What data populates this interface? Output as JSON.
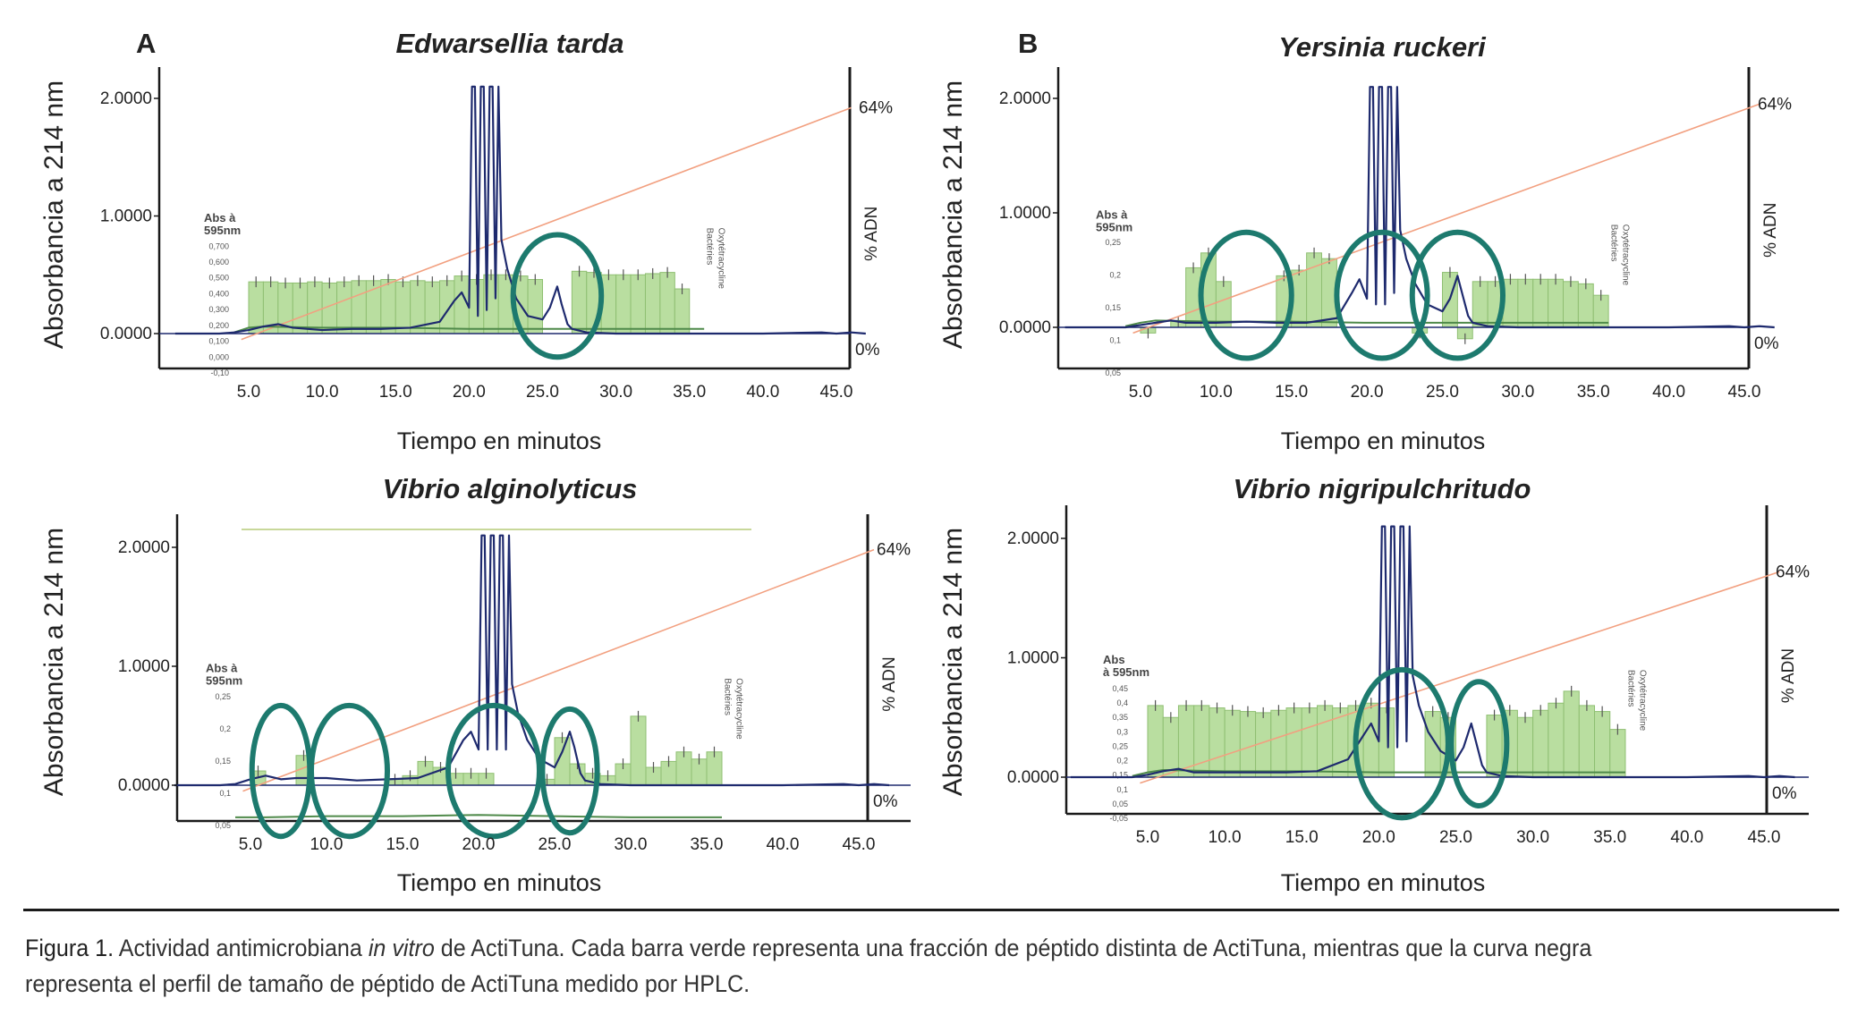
{
  "figure": {
    "caption_label": "Figura 1.",
    "caption_pre": " Actividad antimicrobiana ",
    "caption_em": "in vitro",
    "caption_post": " de ActiTuna. Cada barra verde representa una fracción de péptido distinta de ActiTuna, mientras que la curva negra representa el perfil de tamaño de péptido de ActiTuna medido por HPLC."
  },
  "colors": {
    "bar_fill": "#b9dea0",
    "bar_stroke": "#8fbf72",
    "hplc_line": "#1e2a6e",
    "gradient_line": "#f2a080",
    "green_trace": "#4f8a4a",
    "circle": "#1d7a6e",
    "axis": "#1a1a1a"
  },
  "chart_data": [
    {
      "type": "bar",
      "panel_letter": "A",
      "title": "Edwarsellia tarda",
      "xlabel": "Tiempo en minutos",
      "ylabel": "Absorbancia a 214 nm",
      "y2label": "% ADN",
      "xlim": [
        0,
        47
      ],
      "ylim": [
        -0.25,
        2.2
      ],
      "x_ticks": [
        "5.0",
        "10.0",
        "15.0",
        "20.0",
        "25.0",
        "30.0",
        "35.0",
        "40.0",
        "45.0"
      ],
      "y_ticks": [
        "2.0000",
        "1.0000",
        "0.0000"
      ],
      "y2_ticks": [
        "64%",
        "0%"
      ],
      "inset": {
        "label_line1": "Abs à",
        "label_line2": "595nm",
        "ticks": [
          "0,700",
          "0,600",
          "0,500",
          "0,400",
          "0,300",
          "0,200",
          "0,100",
          "0,000",
          "-0,10"
        ],
        "markers": [
          "Bactéries",
          "Oxytétracycline"
        ]
      },
      "bars": {
        "x": [
          5.5,
          6.5,
          7.5,
          8.5,
          9.5,
          10.5,
          11.5,
          12.5,
          13.5,
          14.5,
          15.5,
          16.5,
          17.5,
          18.5,
          19.5,
          20.5,
          21.5,
          22.5,
          23.5,
          24.5,
          25.5,
          26.5,
          27.5,
          28.5,
          29.5,
          30.5,
          31.5,
          32.5,
          33.5,
          34.5,
          35.5
        ],
        "values": [
          0.44,
          0.44,
          0.43,
          0.43,
          0.44,
          0.43,
          0.44,
          0.45,
          0.45,
          0.46,
          0.44,
          0.45,
          0.44,
          0.45,
          0.49,
          0.46,
          0.5,
          0.5,
          0.49,
          0.46,
          0.0,
          0.0,
          0.53,
          0.52,
          0.5,
          0.5,
          0.5,
          0.51,
          0.52,
          0.38,
          0.0
        ]
      },
      "hplc": {
        "x": [
          0,
          3,
          4,
          5,
          6,
          7,
          8,
          10,
          12,
          14,
          16,
          18,
          19,
          19.5,
          20,
          20.2,
          20.4,
          20.6,
          20.8,
          21.0,
          21.2,
          21.4,
          21.6,
          21.8,
          22.0,
          22.2,
          22.6,
          23.2,
          24,
          25,
          25.5,
          26,
          26.3,
          26.7,
          27,
          28,
          30,
          35,
          40,
          44,
          45,
          46,
          47
        ],
        "y": [
          0.0,
          0.0,
          0.01,
          0.03,
          0.06,
          0.08,
          0.05,
          0.03,
          0.04,
          0.04,
          0.05,
          0.1,
          0.28,
          0.35,
          0.22,
          2.1,
          2.1,
          0.15,
          2.1,
          2.1,
          0.2,
          2.1,
          2.1,
          0.3,
          2.1,
          0.8,
          0.55,
          0.3,
          0.15,
          0.12,
          0.22,
          0.4,
          0.25,
          0.08,
          0.04,
          0.01,
          0.0,
          0.0,
          0.0,
          0.01,
          0.0,
          0.01,
          0.0
        ]
      },
      "green_trace": {
        "x": [
          4,
          5,
          6,
          10,
          15,
          20,
          25,
          30,
          35,
          36
        ],
        "y": [
          0.01,
          0.05,
          0.06,
          0.05,
          0.05,
          0.04,
          0.04,
          0.04,
          0.04,
          0.04
        ]
      },
      "gradient": {
        "x0": 4.5,
        "y0": -0.05,
        "x1": 46,
        "y1": 1.92
      },
      "circles": [
        {
          "cx": 26.0,
          "cy": 0.32,
          "rx": 3.0,
          "ry": 0.52
        }
      ]
    },
    {
      "type": "bar",
      "panel_letter": "B",
      "title": "Yersinia ruckeri",
      "xlabel": "Tiempo en minutos",
      "ylabel": "Absorbancia a 214 nm",
      "y2label": "% ADN",
      "xlim": [
        0,
        47
      ],
      "ylim": [
        -0.35,
        2.2
      ],
      "x_ticks": [
        "5.0",
        "10.0",
        "15.0",
        "20.0",
        "25.0",
        "30.0",
        "35.0",
        "40.0",
        "45.0"
      ],
      "y_ticks": [
        "2.0000",
        "1.0000",
        "0.0000"
      ],
      "y2_ticks": [
        "64%",
        "0%"
      ],
      "inset": {
        "label_line1": "Abs à",
        "label_line2": "595nm",
        "ticks": [
          "0,25",
          "0,2",
          "0,15",
          "0,1",
          "0,05"
        ],
        "markers": [
          "Bactéries",
          "Oxytétracycline"
        ]
      },
      "bars": {
        "x": [
          5.5,
          6.5,
          7.5,
          8.5,
          9.5,
          10.5,
          11.5,
          12.5,
          13.5,
          14.5,
          15.5,
          16.5,
          17.5,
          18.5,
          19.5,
          20.5,
          21.5,
          22.5,
          23.5,
          24.5,
          25.5,
          26.5,
          27.5,
          28.5,
          29.5,
          30.5,
          31.5,
          32.5,
          33.5,
          34.5,
          35.5
        ],
        "values": [
          -0.05,
          0.0,
          0.05,
          0.52,
          0.65,
          0.4,
          0.0,
          0.0,
          0.0,
          0.45,
          0.5,
          0.65,
          0.6,
          0.0,
          0.0,
          0.0,
          0.0,
          0.0,
          -0.05,
          0.0,
          0.48,
          -0.1,
          0.4,
          0.4,
          0.42,
          0.42,
          0.42,
          0.42,
          0.4,
          0.38,
          0.28
        ]
      },
      "hplc": {
        "x": [
          0,
          3,
          4,
          5,
          6,
          7,
          8,
          10,
          12,
          14,
          16,
          18,
          19,
          19.5,
          20,
          20.2,
          20.4,
          20.6,
          20.8,
          21.0,
          21.2,
          21.4,
          21.6,
          21.8,
          22.0,
          22.2,
          22.6,
          23.2,
          24,
          25,
          25.5,
          26,
          26.3,
          26.7,
          27,
          28,
          30,
          35,
          40,
          44,
          45,
          46,
          47
        ],
        "y": [
          0.0,
          0.0,
          0.0,
          0.02,
          0.04,
          0.06,
          0.04,
          0.04,
          0.05,
          0.04,
          0.04,
          0.08,
          0.3,
          0.42,
          0.25,
          2.1,
          2.1,
          0.2,
          2.1,
          2.1,
          0.2,
          2.1,
          2.1,
          0.3,
          2.1,
          0.85,
          0.6,
          0.38,
          0.2,
          0.14,
          0.25,
          0.45,
          0.3,
          0.1,
          0.04,
          0.01,
          0.0,
          0.0,
          0.0,
          0.01,
          0.0,
          0.01,
          0.0
        ]
      },
      "green_trace": {
        "x": [
          4,
          5,
          6,
          10,
          15,
          20,
          25,
          30,
          35,
          36
        ],
        "y": [
          0.01,
          0.04,
          0.06,
          0.05,
          0.05,
          0.04,
          0.04,
          0.04,
          0.04,
          0.04
        ]
      },
      "gradient": {
        "x0": 4.5,
        "y0": -0.05,
        "x1": 46,
        "y1": 1.95
      },
      "circles": [
        {
          "cx": 12.0,
          "cy": 0.28,
          "rx": 3.0,
          "ry": 0.55
        },
        {
          "cx": 21.0,
          "cy": 0.28,
          "rx": 3.0,
          "ry": 0.55
        },
        {
          "cx": 26.0,
          "cy": 0.28,
          "rx": 3.0,
          "ry": 0.55
        }
      ]
    },
    {
      "type": "bar",
      "panel_letter": "",
      "title": "Vibrio alginolyticus",
      "xlabel": "Tiempo en minutos",
      "ylabel": "Absorbancia a 214 nm",
      "y2label": "% ADN",
      "xlim": [
        0,
        47
      ],
      "ylim": [
        -0.3,
        2.3
      ],
      "x_ticks": [
        "5.0",
        "10.0",
        "15.0",
        "20.0",
        "25.0",
        "30.0",
        "35.0",
        "40.0",
        "45.0"
      ],
      "y_ticks": [
        "2.0000",
        "1.0000",
        "0.0000"
      ],
      "y2_ticks": [
        "64%",
        "0%"
      ],
      "inset": {
        "label_line1": "Abs à",
        "label_line2": "595nm",
        "ticks": [
          "0,25",
          "0,2",
          "0,15",
          "0,1",
          "0,05"
        ],
        "markers": [
          "Bactéries",
          "Oxytétracycline"
        ]
      },
      "bars": {
        "x": [
          5.5,
          6.5,
          7.5,
          8.5,
          9.5,
          10.5,
          11.5,
          12.5,
          13.5,
          14.5,
          15.5,
          16.5,
          17.5,
          18.5,
          19.5,
          20.5,
          21.5,
          22.5,
          23.5,
          24.5,
          25.5,
          26.5,
          27.5,
          28.5,
          29.5,
          30.5,
          31.5,
          32.5,
          33.5,
          34.5,
          35.5
        ],
        "values": [
          0.12,
          0.0,
          0.0,
          0.25,
          0.0,
          0.0,
          0.0,
          0.0,
          0.0,
          0.05,
          0.08,
          0.2,
          0.15,
          0.1,
          0.1,
          0.1,
          0.0,
          0.0,
          0.0,
          0.05,
          0.4,
          0.18,
          0.1,
          0.08,
          0.18,
          0.58,
          0.15,
          0.2,
          0.28,
          0.22,
          0.28
        ]
      },
      "hplc": {
        "x": [
          0,
          3,
          4,
          5,
          6,
          7,
          8,
          10,
          12,
          14,
          16,
          18,
          19,
          19.5,
          20,
          20.2,
          20.4,
          20.6,
          20.8,
          21.0,
          21.2,
          21.4,
          21.6,
          21.8,
          22.0,
          22.2,
          22.6,
          23.2,
          24,
          25,
          25.5,
          26,
          26.3,
          26.7,
          27,
          28,
          30,
          35,
          40,
          44,
          45,
          46,
          47
        ],
        "y": [
          0.0,
          0.0,
          0.01,
          0.05,
          0.08,
          0.05,
          0.06,
          0.06,
          0.04,
          0.05,
          0.06,
          0.15,
          0.38,
          0.45,
          0.3,
          2.1,
          2.1,
          0.3,
          2.1,
          2.1,
          0.3,
          2.1,
          2.1,
          0.3,
          2.1,
          0.85,
          0.6,
          0.38,
          0.22,
          0.15,
          0.28,
          0.45,
          0.32,
          0.1,
          0.04,
          0.01,
          0.0,
          0.0,
          0.0,
          0.01,
          0.0,
          0.01,
          0.0
        ]
      },
      "green_trace": {
        "x": [
          4,
          5,
          6,
          10,
          15,
          20,
          25,
          30,
          35,
          36
        ],
        "y": [
          -0.27,
          -0.27,
          -0.27,
          -0.26,
          -0.26,
          -0.25,
          -0.26,
          -0.27,
          -0.27,
          -0.27
        ]
      },
      "gradient": {
        "x0": 4.5,
        "y0": -0.05,
        "x1": 46,
        "y1": 1.98
      },
      "circles": [
        {
          "cx": 7.0,
          "cy": 0.12,
          "rx": 1.9,
          "ry": 0.55
        },
        {
          "cx": 11.5,
          "cy": 0.12,
          "rx": 2.5,
          "ry": 0.55
        },
        {
          "cx": 21.0,
          "cy": 0.12,
          "rx": 3.0,
          "ry": 0.55
        },
        {
          "cx": 26.0,
          "cy": 0.12,
          "rx": 1.8,
          "ry": 0.52
        }
      ]
    },
    {
      "type": "bar",
      "panel_letter": "",
      "title": "Vibrio nigripulchritudo",
      "xlabel": "Tiempo en minutos",
      "ylabel": "Absorbancia a 214 nm",
      "y2label": "% ADN",
      "xlim": [
        0,
        47
      ],
      "ylim": [
        -0.3,
        2.25
      ],
      "x_ticks": [
        "5.0",
        "10.0",
        "15.0",
        "20.0",
        "25.0",
        "30.0",
        "35.0",
        "40.0",
        "45.0"
      ],
      "y_ticks": [
        "2.0000",
        "1.0000",
        "0.0000"
      ],
      "y2_ticks": [
        "64%",
        "0%"
      ],
      "inset": {
        "label_line1": "Abs",
        "label_line2": "à 595nm",
        "ticks": [
          "0,45",
          "0,4",
          "0,35",
          "0,3",
          "0,25",
          "0,2",
          "0,15",
          "0,1",
          "0,05",
          "-0,05"
        ],
        "markers": [
          "Bactéries",
          "Oxytétracycline"
        ]
      },
      "bars": {
        "x": [
          5.5,
          6.5,
          7.5,
          8.5,
          9.5,
          10.5,
          11.5,
          12.5,
          13.5,
          14.5,
          15.5,
          16.5,
          17.5,
          18.5,
          19.5,
          20.5,
          21.5,
          22.5,
          23.5,
          24.5,
          25.5,
          26.5,
          27.5,
          28.5,
          29.5,
          30.5,
          31.5,
          32.5,
          33.5,
          34.5,
          35.5
        ],
        "values": [
          0.6,
          0.5,
          0.6,
          0.6,
          0.58,
          0.56,
          0.55,
          0.54,
          0.56,
          0.58,
          0.58,
          0.6,
          0.58,
          0.6,
          0.62,
          0.58,
          0.0,
          0.0,
          0.55,
          0.5,
          0.0,
          0.0,
          0.52,
          0.56,
          0.5,
          0.56,
          0.62,
          0.72,
          0.6,
          0.55,
          0.4
        ]
      },
      "hplc": {
        "x": [
          0,
          3,
          4,
          5,
          6,
          7,
          8,
          10,
          12,
          14,
          16,
          18,
          19,
          19.5,
          20,
          20.2,
          20.4,
          20.6,
          20.8,
          21.0,
          21.2,
          21.4,
          21.6,
          21.8,
          22.0,
          22.2,
          22.6,
          23.2,
          24,
          25,
          25.5,
          26,
          26.3,
          26.7,
          27,
          28,
          30,
          35,
          40,
          44,
          45,
          46,
          47
        ],
        "y": [
          0.0,
          0.0,
          0.0,
          0.02,
          0.05,
          0.07,
          0.04,
          0.04,
          0.04,
          0.04,
          0.05,
          0.15,
          0.35,
          0.45,
          0.3,
          2.1,
          2.1,
          0.25,
          2.1,
          2.1,
          0.25,
          2.1,
          2.1,
          0.3,
          2.1,
          0.85,
          0.6,
          0.38,
          0.22,
          0.14,
          0.25,
          0.45,
          0.3,
          0.1,
          0.04,
          0.01,
          0.0,
          0.0,
          0.0,
          0.01,
          0.0,
          0.01,
          0.0
        ]
      },
      "green_trace": {
        "x": [
          4,
          5,
          6,
          10,
          15,
          20,
          25,
          30,
          35,
          36
        ],
        "y": [
          0.01,
          0.04,
          0.06,
          0.05,
          0.05,
          0.04,
          0.04,
          0.04,
          0.04,
          0.04
        ]
      },
      "gradient": {
        "x0": 4.5,
        "y0": -0.05,
        "x1": 46,
        "y1": 1.72
      },
      "circles": [
        {
          "cx": 21.5,
          "cy": 0.28,
          "rx": 3.0,
          "ry": 0.62
        },
        {
          "cx": 26.5,
          "cy": 0.28,
          "rx": 1.8,
          "ry": 0.52
        }
      ]
    }
  ]
}
